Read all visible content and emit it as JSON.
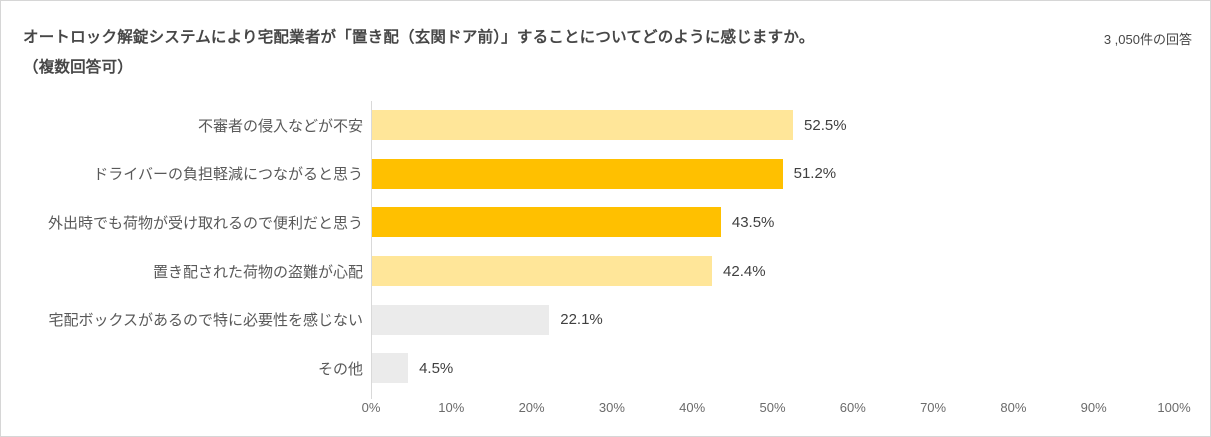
{
  "header": {
    "title": "オートロック解錠システムにより宅配業者が「置き配（玄関ドア前）」することについてどのように感じますか。",
    "subtitle": "（複数回答可）",
    "response_count": "3 ,050件の回答"
  },
  "chart_data": {
    "type": "bar",
    "orientation": "horizontal",
    "title": "オートロック解錠システムにより宅配業者が「置き配（玄関ドア前）」することについてどのように感じますか。（複数回答可）",
    "categories": [
      "不審者の侵入などが不安",
      "ドライバーの負担軽減につながると思う",
      "外出時でも荷物が受け取れるので便利だと思う",
      "置き配された荷物の盗難が心配",
      "宅配ボックスがあるので特に必要性を感じない",
      "その他"
    ],
    "values": [
      52.5,
      51.2,
      43.5,
      42.4,
      22.1,
      4.5
    ],
    "value_labels": [
      "52.5%",
      "51.2%",
      "43.5%",
      "42.4%",
      "22.1%",
      "4.5%"
    ],
    "bar_colors": [
      "#FFE699",
      "#FFC000",
      "#FFC000",
      "#FFE699",
      "#EBEBEB",
      "#EBEBEB"
    ],
    "xlabel": "",
    "ylabel": "",
    "xlim": [
      0,
      100
    ],
    "x_ticks": [
      "0%",
      "10%",
      "20%",
      "30%",
      "40%",
      "50%",
      "60%",
      "70%",
      "80%",
      "90%",
      "100%"
    ],
    "grid": false,
    "legend": "none"
  },
  "colors": {
    "gold": "#FFC000",
    "light_yellow": "#FFE699",
    "gray_bar": "#EBEBEB",
    "axis_line": "#D9D9D9",
    "frame_border": "#D6D6D6",
    "title_text": "#474747",
    "category_text": "#595959",
    "value_text": "#404040",
    "tick_text": "#6B6B6B"
  }
}
